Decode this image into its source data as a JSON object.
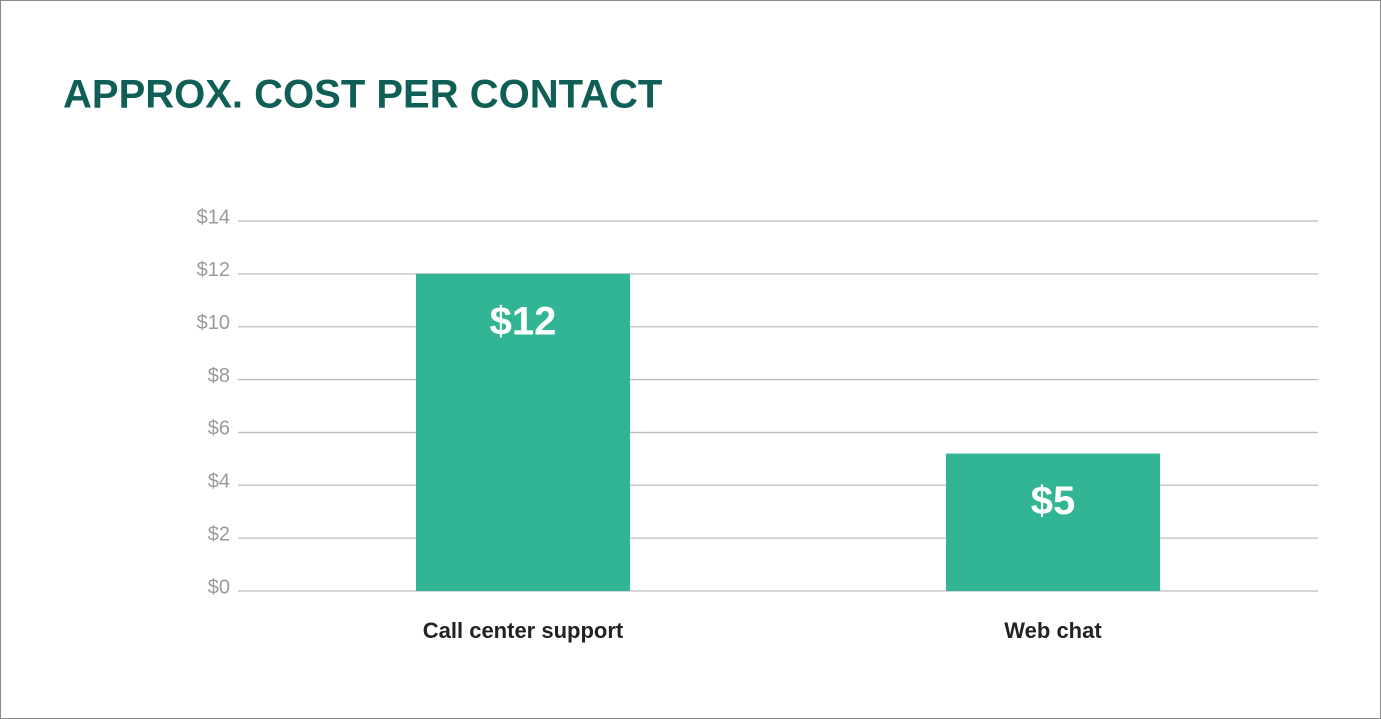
{
  "chart_data": {
    "type": "bar",
    "title": "APPROX. COST PER CONTACT",
    "categories": [
      "Call center support",
      "Web chat"
    ],
    "values": [
      12,
      5.2
    ],
    "value_labels": [
      "$12",
      "$5"
    ],
    "color": "#32b594",
    "ylim": [
      0,
      14
    ],
    "yticks": [
      {
        "value": 0,
        "label": "$0"
      },
      {
        "value": 2,
        "label": "$2"
      },
      {
        "value": 4,
        "label": "$4"
      },
      {
        "value": 6,
        "label": "$6"
      },
      {
        "value": 8,
        "label": "$8"
      },
      {
        "value": 10,
        "label": "$10"
      },
      {
        "value": 12,
        "label": "$12"
      },
      {
        "value": 14,
        "label": "$14"
      }
    ],
    "grid": true
  }
}
